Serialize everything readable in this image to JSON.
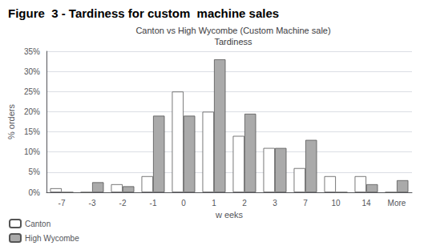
{
  "chart_data": {
    "type": "bar",
    "title": "Figure  3 - Tardiness for custom  machine sales",
    "subtitle": "Canton vs High Wycombe (Custom Machine sale)\nTardiness",
    "x_label": "w eeks",
    "y_label": "% orders",
    "categories": [
      "-7",
      "-3",
      "-2",
      "-1",
      "0",
      "1",
      "2",
      "3",
      "7",
      "10",
      "14",
      "More"
    ],
    "series": [
      {
        "name": "Canton",
        "color": "#ffffff",
        "values": [
          1,
          0,
          2,
          4,
          25,
          20,
          14,
          11,
          6,
          4,
          4,
          0
        ]
      },
      {
        "name": "High Wycombe",
        "color": "#aaaaaa",
        "values": [
          0,
          2.5,
          1.5,
          19,
          19,
          33,
          19.5,
          11,
          13,
          0,
          2,
          3
        ]
      }
    ],
    "ylim": [
      0,
      35
    ],
    "yticks": [
      {
        "value": 0,
        "label": "0%"
      },
      {
        "value": 5,
        "label": "5%"
      },
      {
        "value": 10,
        "label": "10%"
      },
      {
        "value": 15,
        "label": "15%"
      },
      {
        "value": 20,
        "label": "20%"
      },
      {
        "value": 25,
        "label": "25%"
      },
      {
        "value": 30,
        "label": "30%"
      },
      {
        "value": 35,
        "label": "35%"
      }
    ],
    "grid": true,
    "legend": "lower left"
  }
}
